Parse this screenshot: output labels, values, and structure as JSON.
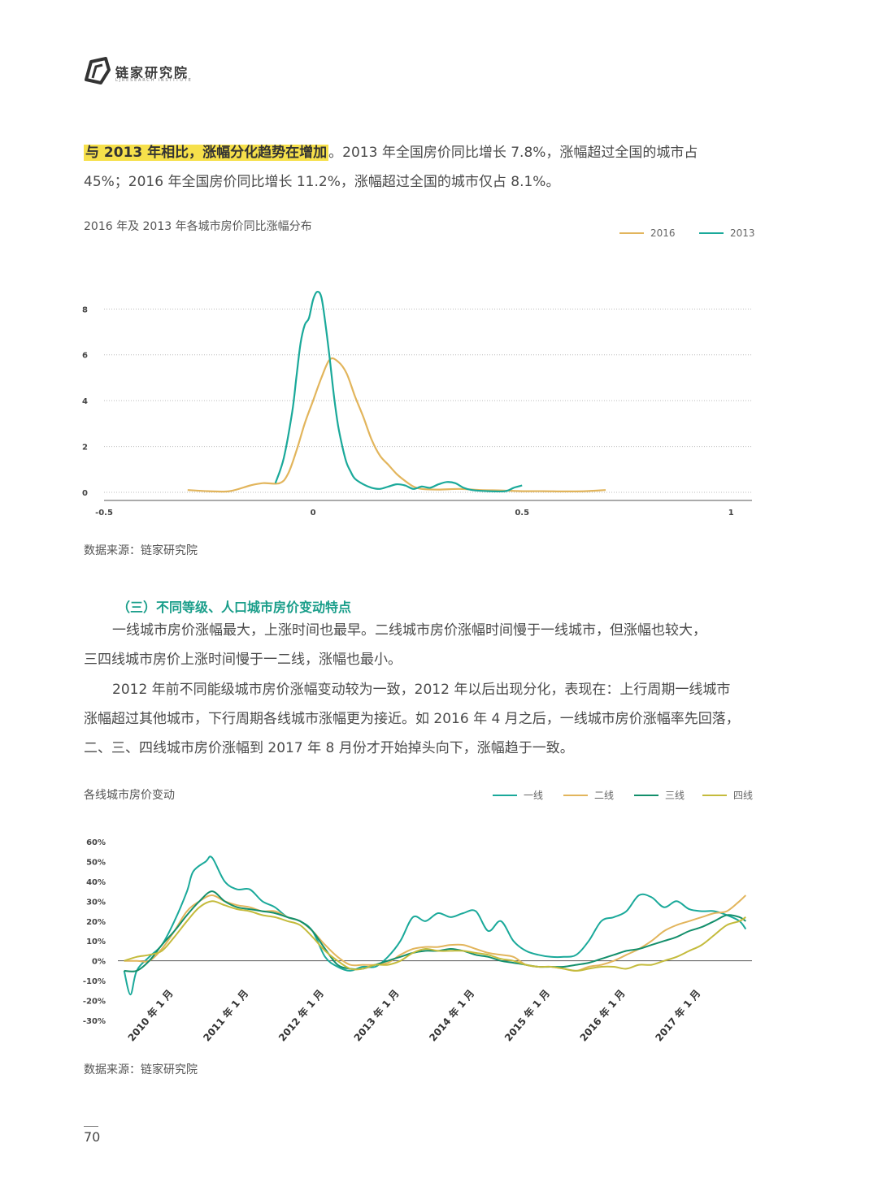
{
  "header": {
    "brand": "链家研究院",
    "brand_sub": "LJRESEARCH INSTITUTE"
  },
  "para1": {
    "highlight": "与 2013 年相比，涨幅分化趋势在增加",
    "line1_rest": "。2013 年全国房价同比增长 7.8%，涨幅超过全国的城市占",
    "line2": "45%；2016 年全国房价同比增长 11.2%，涨幅超过全国的城市仅占 8.1%。"
  },
  "chart1": {
    "title": "2016 年及 2013 年各城市房价同比涨幅分布",
    "source": "数据来源：链家研究院"
  },
  "section_title": "（三）不同等级、人口城市房价变动特点",
  "para2": {
    "line1": "一线城市房价涨幅最大，上涨时间也最早。二线城市房价涨幅时间慢于一线城市，但涨幅也较大，",
    "line2": "三四线城市房价上涨时间慢于一二线，涨幅也最小。"
  },
  "para3": {
    "line1": "2012 年前不同能级城市房价涨幅变动较为一致，2012 年以后出现分化，表现在：上行周期一线城市",
    "line2": "涨幅超过其他城市，下行周期各线城市涨幅更为接近。如 2016 年 4 月之后，一线城市房价涨幅率先回落，",
    "line3": "二、三、四线城市房价涨幅到 2017 年 8 月份才开始掉头向下，涨幅趋于一致。"
  },
  "chart2": {
    "title": "各线城市房价变动",
    "source": "数据来源：链家研究院"
  },
  "page_number": "70",
  "colors": {
    "teal": "#1aa99a",
    "gold": "#e2b55c",
    "green": "#138f6b",
    "olive": "#c4bb3c",
    "highlight": "#f6e04b"
  },
  "chart_data": [
    {
      "type": "line",
      "title": "2016 年及 2013 年各城市房价同比涨幅分布",
      "xlim": [
        -0.5,
        1.05
      ],
      "ylim": [
        0,
        9.5
      ],
      "x_ticks": [
        -0.5,
        0,
        0.5,
        1
      ],
      "x_tick_labels": [
        "-0.5",
        "0",
        "0.5",
        "1"
      ],
      "y_ticks": [
        0,
        2,
        4,
        6,
        8
      ],
      "y_tick_labels": [
        "0",
        "2",
        "4",
        "6",
        "8"
      ],
      "grid": true,
      "legend_position": "top-right",
      "series": [
        {
          "name": "2016",
          "color": "#e2b55c",
          "x": [
            -0.3,
            -0.25,
            -0.2,
            -0.15,
            -0.12,
            -0.08,
            -0.06,
            -0.04,
            -0.02,
            0,
            0.02,
            0.04,
            0.06,
            0.08,
            0.1,
            0.12,
            0.14,
            0.16,
            0.18,
            0.2,
            0.22,
            0.24,
            0.26,
            0.3,
            0.35,
            0.4,
            0.45,
            0.5,
            0.55,
            0.6,
            0.65,
            0.7
          ],
          "y": [
            0.1,
            0.05,
            0.05,
            0.3,
            0.4,
            0.4,
            0.8,
            1.8,
            3.0,
            4.0,
            5.0,
            5.8,
            5.7,
            5.2,
            4.2,
            3.3,
            2.3,
            1.6,
            1.2,
            0.8,
            0.5,
            0.25,
            0.15,
            0.12,
            0.15,
            0.1,
            0.08,
            0.05,
            0.05,
            0.04,
            0.05,
            0.1
          ]
        },
        {
          "name": "2013",
          "color": "#1aa99a",
          "x": [
            -0.09,
            -0.07,
            -0.05,
            -0.04,
            -0.03,
            -0.02,
            -0.01,
            0,
            0.01,
            0.02,
            0.03,
            0.04,
            0.05,
            0.06,
            0.07,
            0.08,
            0.09,
            0.1,
            0.12,
            0.14,
            0.16,
            0.18,
            0.2,
            0.22,
            0.24,
            0.26,
            0.28,
            0.3,
            0.32,
            0.34,
            0.36,
            0.38,
            0.42,
            0.46,
            0.48,
            0.5
          ],
          "y": [
            0.4,
            1.5,
            3.5,
            5.0,
            6.5,
            7.3,
            7.6,
            8.4,
            8.75,
            8.5,
            7.3,
            5.8,
            4.2,
            2.9,
            2.0,
            1.3,
            0.9,
            0.6,
            0.35,
            0.2,
            0.15,
            0.25,
            0.35,
            0.3,
            0.15,
            0.25,
            0.2,
            0.35,
            0.45,
            0.4,
            0.2,
            0.1,
            0.05,
            0.05,
            0.2,
            0.3
          ]
        }
      ]
    },
    {
      "type": "line",
      "title": "各线城市房价变动",
      "ylim": [
        -0.3,
        0.6
      ],
      "y_ticks": [
        0.6,
        0.5,
        0.4,
        0.3,
        0.2,
        0.1,
        0,
        -0.1,
        -0.2,
        -0.3
      ],
      "y_tick_labels": [
        "60%",
        "50%",
        "40%",
        "30%",
        "20%",
        "10%",
        "0%",
        "-10%",
        "-20%",
        "-30%"
      ],
      "x_range_months": [
        "2009-07",
        "2017-12"
      ],
      "x_tick_labels": [
        "2010 年 1 月",
        "2011 年 1 月",
        "2012 年 1 月",
        "2013 年 1 月",
        "2014 年 1 月",
        "2015 年 1 月",
        "2016 年 1 月",
        "2017 年 1 月"
      ],
      "x_tick_months": [
        "2010-01",
        "2011-01",
        "2012-01",
        "2013-01",
        "2014-01",
        "2015-01",
        "2016-01",
        "2017-01"
      ],
      "legend_position": "top-right",
      "series": [
        {
          "name": "一线",
          "color": "#1aa99a",
          "x": [
            "2009-08",
            "2009-09",
            "2009-10",
            "2009-12",
            "2010-02",
            "2010-04",
            "2010-06",
            "2010-07",
            "2010-09",
            "2010-10",
            "2010-12",
            "2011-02",
            "2011-04",
            "2011-06",
            "2011-08",
            "2011-10",
            "2011-12",
            "2012-02",
            "2012-04",
            "2012-06",
            "2012-08",
            "2012-10",
            "2012-12",
            "2013-02",
            "2013-04",
            "2013-06",
            "2013-08",
            "2013-10",
            "2013-12",
            "2014-02",
            "2014-04",
            "2014-06",
            "2014-08",
            "2014-10",
            "2014-12",
            "2015-02",
            "2015-04",
            "2015-06",
            "2015-08",
            "2015-10",
            "2015-12",
            "2016-02",
            "2016-04",
            "2016-06",
            "2016-08",
            "2016-10",
            "2016-12",
            "2017-02",
            "2017-04",
            "2017-06",
            "2017-08",
            "2017-10",
            "2017-11"
          ],
          "y": [
            -0.05,
            -0.17,
            -0.05,
            0.02,
            0.08,
            0.2,
            0.35,
            0.45,
            0.5,
            0.52,
            0.4,
            0.36,
            0.36,
            0.3,
            0.27,
            0.22,
            0.2,
            0.15,
            0.02,
            -0.03,
            -0.05,
            -0.03,
            -0.03,
            0.02,
            0.1,
            0.22,
            0.2,
            0.24,
            0.22,
            0.24,
            0.25,
            0.15,
            0.2,
            0.1,
            0.05,
            0.03,
            0.02,
            0.02,
            0.03,
            0.1,
            0.2,
            0.22,
            0.25,
            0.33,
            0.32,
            0.27,
            0.3,
            0.26,
            0.25,
            0.25,
            0.23,
            0.2,
            0.16
          ]
        },
        {
          "name": "二线",
          "color": "#e2b55c",
          "x": [
            "2009-08",
            "2009-10",
            "2009-12",
            "2010-02",
            "2010-04",
            "2010-06",
            "2010-08",
            "2010-10",
            "2010-12",
            "2011-02",
            "2011-04",
            "2011-06",
            "2011-08",
            "2011-10",
            "2011-12",
            "2012-02",
            "2012-04",
            "2012-06",
            "2012-08",
            "2012-10",
            "2012-12",
            "2013-02",
            "2013-04",
            "2013-06",
            "2013-08",
            "2013-10",
            "2013-12",
            "2014-02",
            "2014-04",
            "2014-06",
            "2014-08",
            "2014-10",
            "2014-12",
            "2015-02",
            "2015-04",
            "2015-06",
            "2015-08",
            "2015-10",
            "2015-12",
            "2016-02",
            "2016-04",
            "2016-06",
            "2016-08",
            "2016-10",
            "2016-12",
            "2017-02",
            "2017-04",
            "2017-06",
            "2017-08",
            "2017-10",
            "2017-11"
          ],
          "y": [
            0.0,
            0.0,
            0.0,
            0.06,
            0.15,
            0.25,
            0.3,
            0.33,
            0.3,
            0.28,
            0.27,
            0.25,
            0.25,
            0.22,
            0.2,
            0.15,
            0.08,
            0.02,
            -0.02,
            -0.02,
            -0.02,
            -0.01,
            0.03,
            0.06,
            0.07,
            0.07,
            0.08,
            0.08,
            0.06,
            0.04,
            0.03,
            0.02,
            -0.02,
            -0.03,
            -0.03,
            -0.04,
            -0.05,
            -0.03,
            -0.02,
            0.0,
            0.03,
            0.06,
            0.1,
            0.15,
            0.18,
            0.2,
            0.22,
            0.24,
            0.25,
            0.3,
            0.33
          ]
        },
        {
          "name": "三线",
          "color": "#138f6b",
          "x": [
            "2009-08",
            "2009-10",
            "2009-12",
            "2010-02",
            "2010-04",
            "2010-06",
            "2010-08",
            "2010-10",
            "2010-12",
            "2011-02",
            "2011-04",
            "2011-06",
            "2011-08",
            "2011-10",
            "2011-12",
            "2012-02",
            "2012-04",
            "2012-06",
            "2012-08",
            "2012-10",
            "2012-12",
            "2013-02",
            "2013-04",
            "2013-06",
            "2013-08",
            "2013-10",
            "2013-12",
            "2014-02",
            "2014-04",
            "2014-06",
            "2014-08",
            "2014-10",
            "2014-12",
            "2015-02",
            "2015-04",
            "2015-06",
            "2015-08",
            "2015-10",
            "2015-12",
            "2016-02",
            "2016-04",
            "2016-06",
            "2016-08",
            "2016-10",
            "2016-12",
            "2017-02",
            "2017-04",
            "2017-06",
            "2017-08",
            "2017-10",
            "2017-11"
          ],
          "y": [
            -0.05,
            -0.05,
            0.0,
            0.08,
            0.15,
            0.23,
            0.3,
            0.35,
            0.3,
            0.27,
            0.26,
            0.25,
            0.24,
            0.22,
            0.2,
            0.15,
            0.06,
            -0.02,
            -0.04,
            -0.04,
            -0.02,
            0.0,
            0.02,
            0.04,
            0.05,
            0.05,
            0.06,
            0.05,
            0.03,
            0.02,
            0.0,
            -0.01,
            -0.02,
            -0.03,
            -0.03,
            -0.03,
            -0.02,
            -0.01,
            0.01,
            0.03,
            0.05,
            0.06,
            0.08,
            0.1,
            0.12,
            0.15,
            0.17,
            0.2,
            0.23,
            0.22,
            0.2
          ]
        },
        {
          "name": "四线",
          "color": "#c4bb3c",
          "x": [
            "2009-08",
            "2009-10",
            "2009-12",
            "2010-02",
            "2010-04",
            "2010-06",
            "2010-08",
            "2010-10",
            "2010-12",
            "2011-02",
            "2011-04",
            "2011-06",
            "2011-08",
            "2011-10",
            "2011-12",
            "2012-02",
            "2012-04",
            "2012-06",
            "2012-08",
            "2012-10",
            "2012-12",
            "2013-02",
            "2013-04",
            "2013-06",
            "2013-08",
            "2013-10",
            "2013-12",
            "2014-02",
            "2014-04",
            "2014-06",
            "2014-08",
            "2014-10",
            "2014-12",
            "2015-02",
            "2015-04",
            "2015-06",
            "2015-08",
            "2015-10",
            "2015-12",
            "2016-02",
            "2016-04",
            "2016-06",
            "2016-08",
            "2016-10",
            "2016-12",
            "2017-02",
            "2017-04",
            "2017-06",
            "2017-08",
            "2017-10",
            "2017-11"
          ],
          "y": [
            0.0,
            0.02,
            0.03,
            0.05,
            0.12,
            0.2,
            0.27,
            0.3,
            0.28,
            0.26,
            0.25,
            0.23,
            0.22,
            0.2,
            0.18,
            0.12,
            0.05,
            0.0,
            -0.04,
            -0.04,
            -0.02,
            -0.02,
            0.0,
            0.04,
            0.06,
            0.05,
            0.05,
            0.05,
            0.04,
            0.03,
            0.01,
            0.0,
            -0.02,
            -0.03,
            -0.03,
            -0.04,
            -0.05,
            -0.04,
            -0.03,
            -0.03,
            -0.04,
            -0.02,
            -0.02,
            0.0,
            0.02,
            0.05,
            0.08,
            0.13,
            0.18,
            0.2,
            0.22
          ]
        }
      ]
    }
  ]
}
